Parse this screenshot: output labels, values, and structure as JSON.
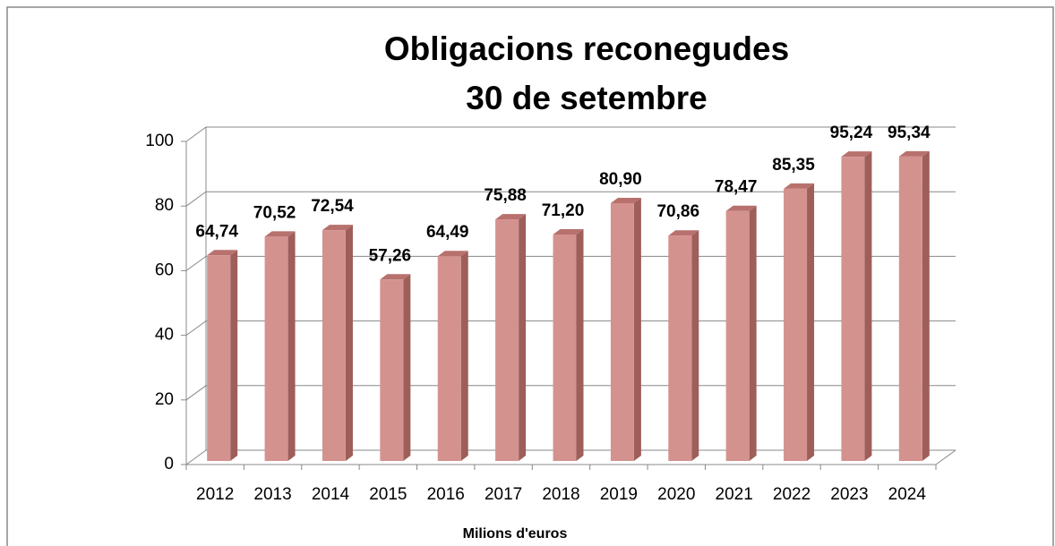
{
  "chart_data": {
    "type": "bar3d",
    "title": [
      "Obligacions reconegudes",
      "30 de setembre"
    ],
    "x_label": "Milions d'euros",
    "categories": [
      "2012",
      "2013",
      "2014",
      "2015",
      "2016",
      "2017",
      "2018",
      "2019",
      "2020",
      "2021",
      "2022",
      "2023",
      "2024"
    ],
    "values": [
      64.74,
      70.52,
      72.54,
      57.26,
      64.49,
      75.88,
      71.2,
      80.9,
      70.86,
      78.47,
      85.35,
      95.24,
      95.34
    ],
    "value_labels": [
      "64,74",
      "70,52",
      "72,54",
      "57,26",
      "64,49",
      "75,88",
      "71,20",
      "80,90",
      "70,86",
      "78,47",
      "85,35",
      "95,24",
      "95,34"
    ],
    "color": "#d4928f",
    "ylim": [
      0,
      100
    ],
    "yticks": [
      0,
      20,
      40,
      60,
      80,
      100
    ],
    "grid": true
  }
}
